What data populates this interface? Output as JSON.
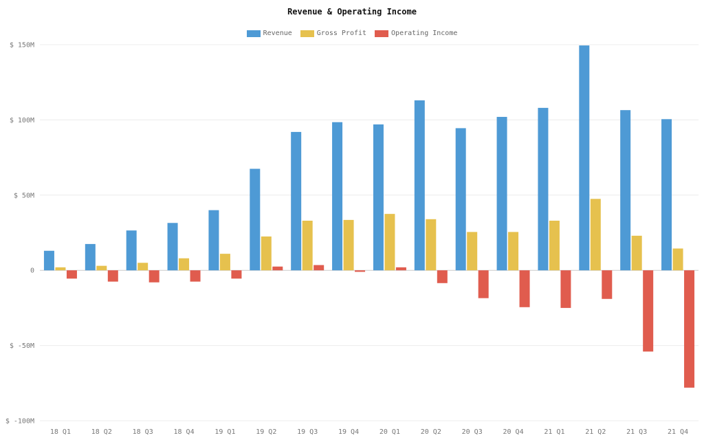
{
  "chart_data": {
    "type": "bar",
    "title": "Revenue & Operating Income",
    "xlabel": "",
    "ylabel": "",
    "categories": [
      "18 Q1",
      "18 Q2",
      "18 Q3",
      "18 Q4",
      "19 Q1",
      "19 Q2",
      "19 Q3",
      "19 Q4",
      "20 Q1",
      "20 Q2",
      "20 Q3",
      "20 Q4",
      "21 Q1",
      "21 Q2",
      "21 Q3",
      "21 Q4"
    ],
    "series": [
      {
        "name": "Revenue",
        "color": "#4e9ad5",
        "values": [
          13,
          17.5,
          26.5,
          31.5,
          40,
          67.5,
          92,
          98.5,
          97,
          113,
          94.5,
          102,
          108,
          149.5,
          106.5,
          100.5
        ]
      },
      {
        "name": "Gross Profit",
        "color": "#e6c14e",
        "values": [
          2,
          3,
          5,
          8,
          11,
          22.5,
          33,
          33.5,
          37.5,
          34,
          25.5,
          25.5,
          33,
          47.5,
          23,
          14.5
        ]
      },
      {
        "name": "Operating Income",
        "color": "#e05c4e",
        "values": [
          -5.5,
          -7.5,
          -8,
          -7.5,
          -5.5,
          2.5,
          3.5,
          -1,
          2,
          -8.5,
          -18.5,
          -24.5,
          -25,
          -19,
          -54,
          -78
        ]
      }
    ],
    "ylim": [
      -100,
      150
    ],
    "yticks": [
      150,
      100,
      50,
      0,
      -50,
      -100
    ],
    "ytick_labels": [
      "$ 150M",
      "$ 100M",
      "$ 50M",
      "0",
      "$ -50M",
      "$ -100M"
    ],
    "grid": true,
    "legend_position": "top-center"
  }
}
